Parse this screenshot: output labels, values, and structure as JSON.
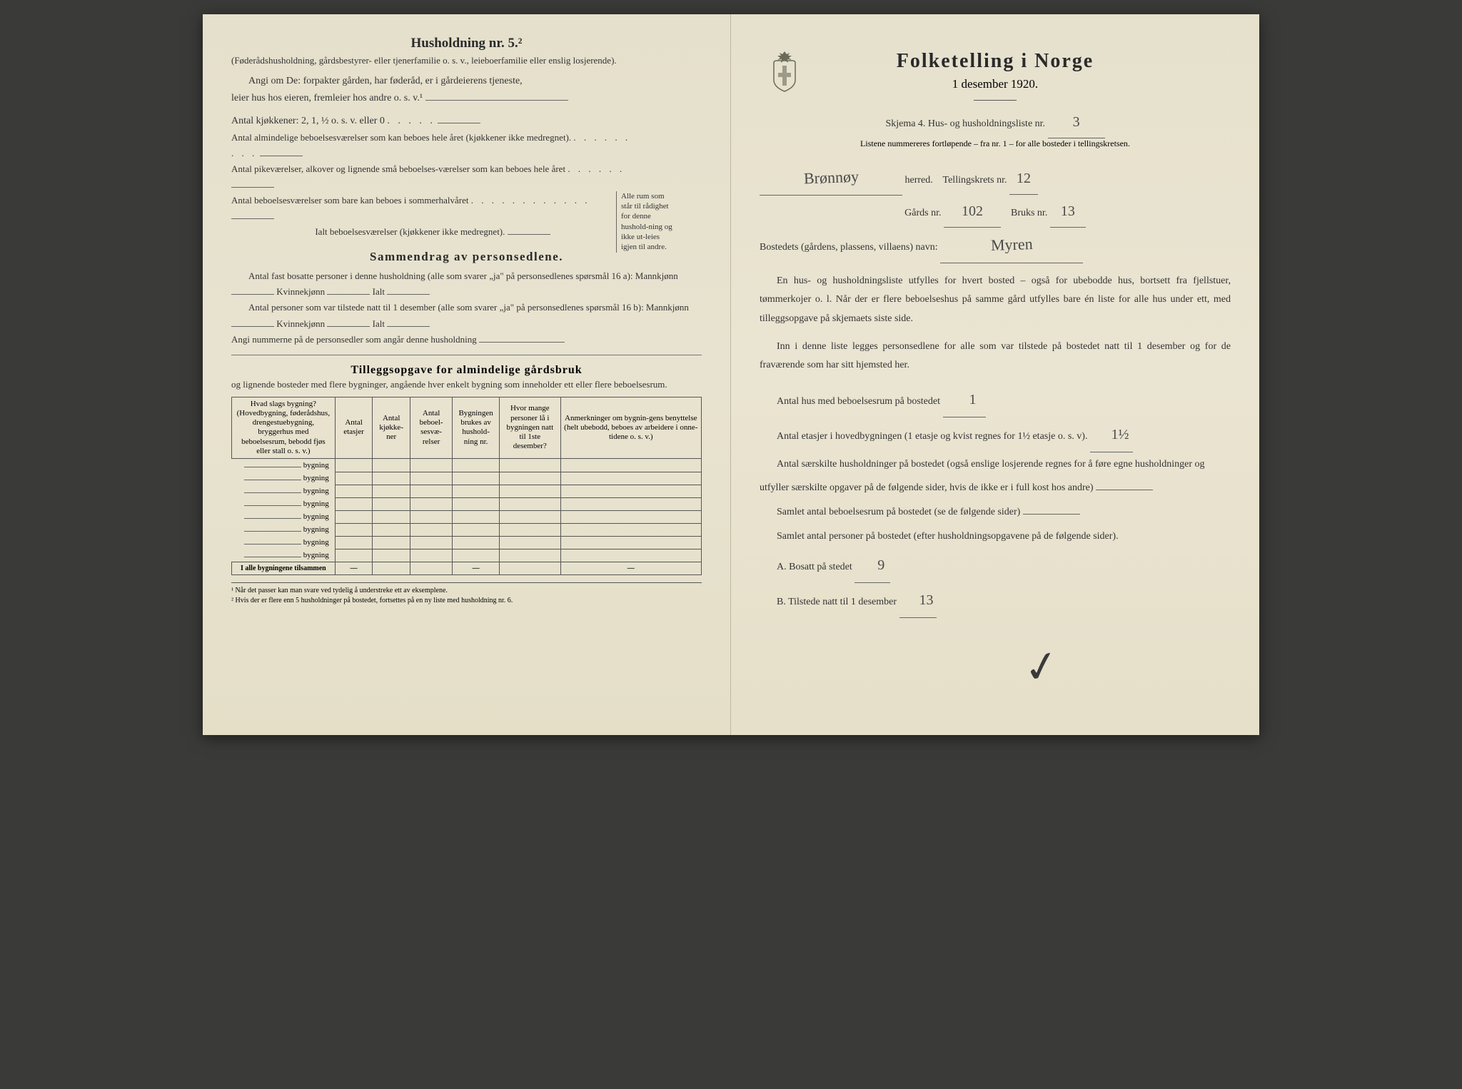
{
  "left": {
    "household_header": "Husholdning nr. 5.²",
    "household_sub": "(Føderådshusholdning, gårdsbestyrer- eller tjenerfamilie o. s. v., leieboerfamilie eller enslig losjerende).",
    "angi_line1": "Angi om De: forpakter gården, har føderåd, er i gårdeierens tjeneste,",
    "angi_line2": "leier hus hos eieren, fremleier hos andre o. s. v.¹",
    "kitchens": "Antal kjøkkener: 2, 1, ½ o. s. v. eller 0",
    "rooms_all_year": "Antal almindelige beboelsesværelser som kan beboes hele året (kjøkkener ikke medregnet).",
    "alcoves": "Antal pikeværelser, alkover og lignende små beboelses-værelser som kan beboes hele året",
    "summer_rooms": "Antal beboelsesværelser som bare kan beboes i sommerhalvåret",
    "total_rooms": "Ialt beboelsesværelser (kjøkkener ikke medregnet).",
    "bracket_text": "Alle rum som står til rådighet for denne hushold-ning og ikke ut-leies igjen til andre.",
    "summary_title": "Sammendrag av personsedlene.",
    "summary_line1": "Antal fast bosatte personer i denne husholdning (alle som svarer „ja\" på personsedlenes spørsmål 16 a): Mannkjønn",
    "kvinne": "Kvinnekjønn",
    "ialt": "Ialt",
    "summary_line2": "Antal personer som var tilstede natt til 1 desember (alle som svarer „ja\" på personsedlenes spørsmål 16 b): Mannkjønn",
    "angi_numbers": "Angi nummerne på de personsedler som angår denne husholdning",
    "tillegg_title": "Tilleggsopgave for almindelige gårdsbruk",
    "tillegg_sub": "og lignende bosteder med flere bygninger, angående hver enkelt bygning som inneholder ett eller flere beboelsesrum.",
    "table_headers": {
      "col1": "Hvad slags bygning?\n(Hovedbygning, føderådshus, drengestuebygning, bryggerhus med beboelsesrum, bebodd fjøs eller stall o. s. v.)",
      "col2": "Antal etasjer",
      "col3": "Antal kjøkke-ner",
      "col4": "Antal beboel-sesvæ-relser",
      "col5": "Bygningen brukes av hushold-ning nr.",
      "col6": "Hvor mange personer lå i bygningen natt til 1ste desember?",
      "col7": "Anmerkninger om bygnin-gens benyttelse (helt ubebodd, beboes av arbeidere i onne-tidene o. s. v.)"
    },
    "row_label": "bygning",
    "total_row": "I alle bygningene tilsammen",
    "footnote1": "¹ Når det passer kan man svare ved tydelig å understreke ett av eksemplene.",
    "footnote2": "² Hvis der er flere enn 5 husholdninger på bostedet, fortsettes på en ny liste med husholdning nr. 6."
  },
  "right": {
    "main_title": "Folketelling i Norge",
    "main_date": "1 desember 1920.",
    "skjema_line": "Skjema 4. Hus- og husholdningsliste nr.",
    "skjema_nr": "3",
    "listene": "Listene nummereres fortløpende – fra nr. 1 – for alle bosteder i tellingskretsen.",
    "herred_hand": "Brønnøy",
    "herred_label": "herred.",
    "telling_label": "Tellingskrets nr.",
    "telling_nr": "12",
    "gards_label": "Gårds nr.",
    "gards_nr": "102",
    "bruks_label": "Bruks nr.",
    "bruks_nr": "13",
    "bosted_label": "Bostedets (gårdens, plassens, villaens) navn:",
    "bosted_hand": "Myren",
    "para1": "En hus- og husholdningsliste utfylles for hvert bosted – også for ubebodde hus, bortsett fra fjellstuer, tømmerkojer o. l. Når der er flere beboelseshus på samme gård utfylles bare én liste for alle hus under ett, med tilleggsopgave på skjemaets siste side.",
    "para2": "Inn i denne liste legges personsedlene for alle som var tilstede på bostedet natt til 1 desember og for de fraværende som har sitt hjemsted her.",
    "antal_hus": "Antal hus med beboelsesrum på bostedet",
    "antal_hus_val": "1",
    "antal_etasjer": "Antal etasjer i hovedbygningen (1 etasje og kvist regnes for 1½ etasje o. s. v).",
    "antal_etasjer_val": "1½",
    "saerskilte": "Antal særskilte husholdninger på bostedet (også enslige losjerende regnes for å føre egne husholdninger og utfyller særskilte opgaver på de følgende sider, hvis de ikke er i full kost hos andre)",
    "samlet_beboelse": "Samlet antal beboelsesrum på bostedet (se de følgende sider)",
    "samlet_personer": "Samlet antal personer på bostedet (efter husholdningsopgavene på de følgende sider).",
    "bosatt_a": "A. Bosatt på stedet",
    "bosatt_a_val": "9",
    "tilstede_b": "B. Tilstede natt til 1 desember",
    "tilstede_b_val": "13"
  },
  "colors": {
    "paper": "#e8e3d0",
    "text": "#2a2a2a",
    "handwriting": "#4a4a4a",
    "border": "#555555"
  }
}
